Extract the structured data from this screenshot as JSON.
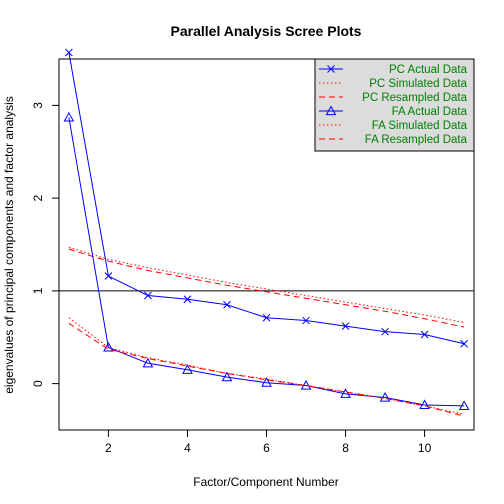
{
  "chart_data": {
    "type": "line",
    "title": "Parallel Analysis Scree Plots",
    "xlabel": "Factor/Component Number",
    "ylabel": "eigenvalues of principal components and factor analysis",
    "xlim": [
      0.75,
      11.25
    ],
    "ylim": [
      -0.5,
      3.5
    ],
    "xticks": [
      2,
      4,
      6,
      8,
      10
    ],
    "yticks": [
      0,
      1,
      2,
      3
    ],
    "grid": false,
    "reference_line": 1,
    "legend_position": "top-right",
    "x": [
      1,
      2,
      3,
      4,
      5,
      6,
      7,
      8,
      9,
      10,
      11
    ],
    "series": [
      {
        "name": "PC  Actual Data",
        "color": "#0000ff",
        "style": "solid",
        "marker": "x",
        "values": [
          3.57,
          1.16,
          0.95,
          0.91,
          0.85,
          0.71,
          0.68,
          0.62,
          0.56,
          0.53,
          0.43
        ]
      },
      {
        "name": "PC  Simulated Data",
        "color": "#ff0000",
        "style": "dotted",
        "marker": "",
        "values": [
          1.47,
          1.34,
          1.25,
          1.17,
          1.09,
          1.02,
          0.95,
          0.88,
          0.81,
          0.74,
          0.66
        ]
      },
      {
        "name": "PC  Resampled Data",
        "color": "#ff0000",
        "style": "dashed",
        "marker": "",
        "values": [
          1.45,
          1.32,
          1.22,
          1.14,
          1.06,
          0.99,
          0.92,
          0.85,
          0.78,
          0.7,
          0.61
        ]
      },
      {
        "name": "FA  Actual Data",
        "color": "#0000ff",
        "style": "solid",
        "marker": "triangle",
        "values": [
          2.87,
          0.39,
          0.22,
          0.15,
          0.07,
          0.01,
          -0.02,
          -0.11,
          -0.15,
          -0.23,
          -0.24
        ]
      },
      {
        "name": "FA  Simulated Data",
        "color": "#ff0000",
        "style": "dotted",
        "marker": "",
        "values": [
          0.71,
          0.39,
          0.28,
          0.2,
          0.11,
          0.05,
          -0.02,
          -0.09,
          -0.16,
          -0.24,
          -0.33
        ]
      },
      {
        "name": "FA  Resampled Data",
        "color": "#ff0000",
        "style": "dashed",
        "marker": "",
        "values": [
          0.65,
          0.37,
          0.27,
          0.19,
          0.11,
          0.04,
          -0.02,
          -0.09,
          -0.16,
          -0.24,
          -0.35
        ]
      }
    ],
    "legend_background": "#dcdcdc",
    "legend_text_color": "#008000"
  }
}
